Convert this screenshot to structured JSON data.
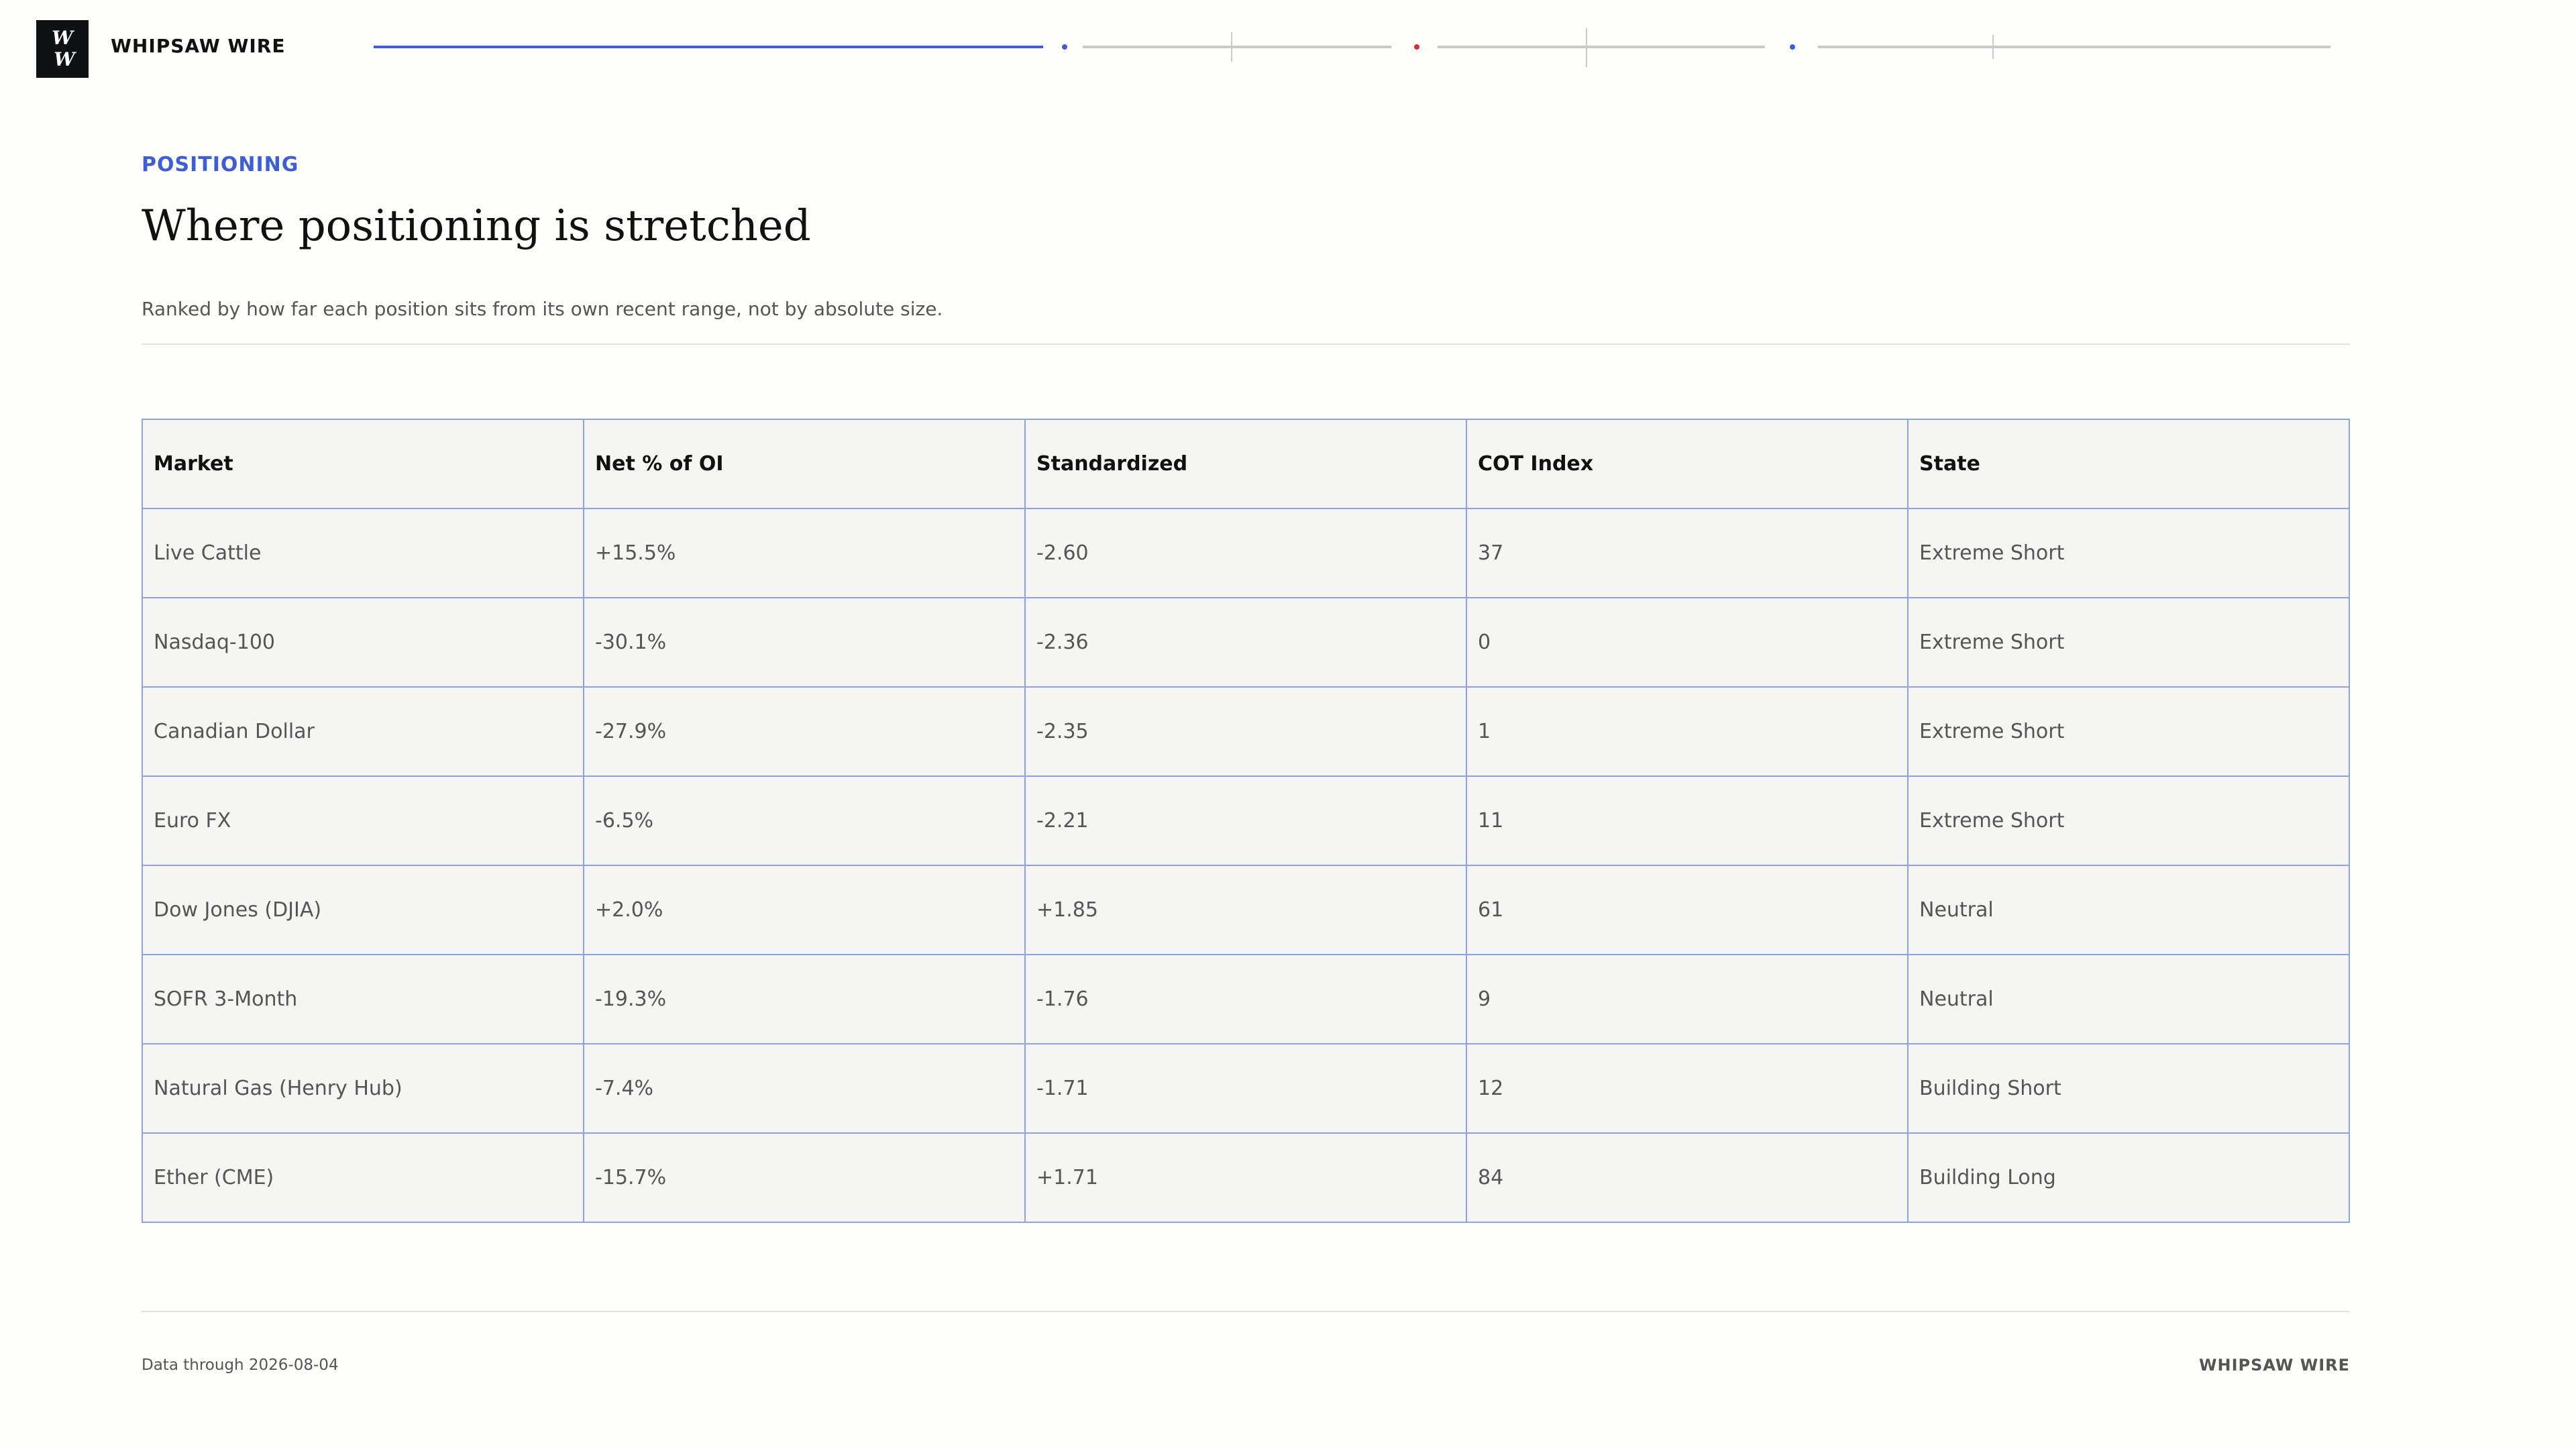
{
  "header": {
    "logo_line1": "W",
    "logo_line2": "W",
    "brand": "WHIPSAW WIRE"
  },
  "section": {
    "eyebrow": "POSITIONING",
    "title": "Where positioning is stretched",
    "subtitle": "Ranked by how far each position sits from its own recent range, not by absolute size."
  },
  "table": {
    "headers": [
      "Market",
      "Net % of OI",
      "Standardized",
      "COT Index",
      "State"
    ],
    "rows": [
      [
        "Live Cattle",
        "+15.5%",
        "-2.60",
        "37",
        "Extreme Short"
      ],
      [
        "Nasdaq-100",
        "-30.1%",
        "-2.36",
        "0",
        "Extreme Short"
      ],
      [
        "Canadian Dollar",
        "-27.9%",
        "-2.35",
        "1",
        "Extreme Short"
      ],
      [
        "Euro FX",
        "-6.5%",
        "-2.21",
        "11",
        "Extreme Short"
      ],
      [
        "Dow Jones (DJIA)",
        "+2.0%",
        "+1.85",
        "61",
        "Neutral"
      ],
      [
        "SOFR 3-Month",
        "-19.3%",
        "-1.76",
        "9",
        "Neutral"
      ],
      [
        "Natural Gas (Henry Hub)",
        "-7.4%",
        "-1.71",
        "12",
        "Building Short"
      ],
      [
        "Ether (CME)",
        "-15.7%",
        "+1.71",
        "84",
        "Building Long"
      ]
    ]
  },
  "footer": {
    "data_through": "Data through 2026-08-04",
    "brand": "WHIPSAW WIRE"
  },
  "colors": {
    "accent": "#3f5fd0",
    "alert": "#c8323a",
    "table_border": "#8fa1df"
  }
}
